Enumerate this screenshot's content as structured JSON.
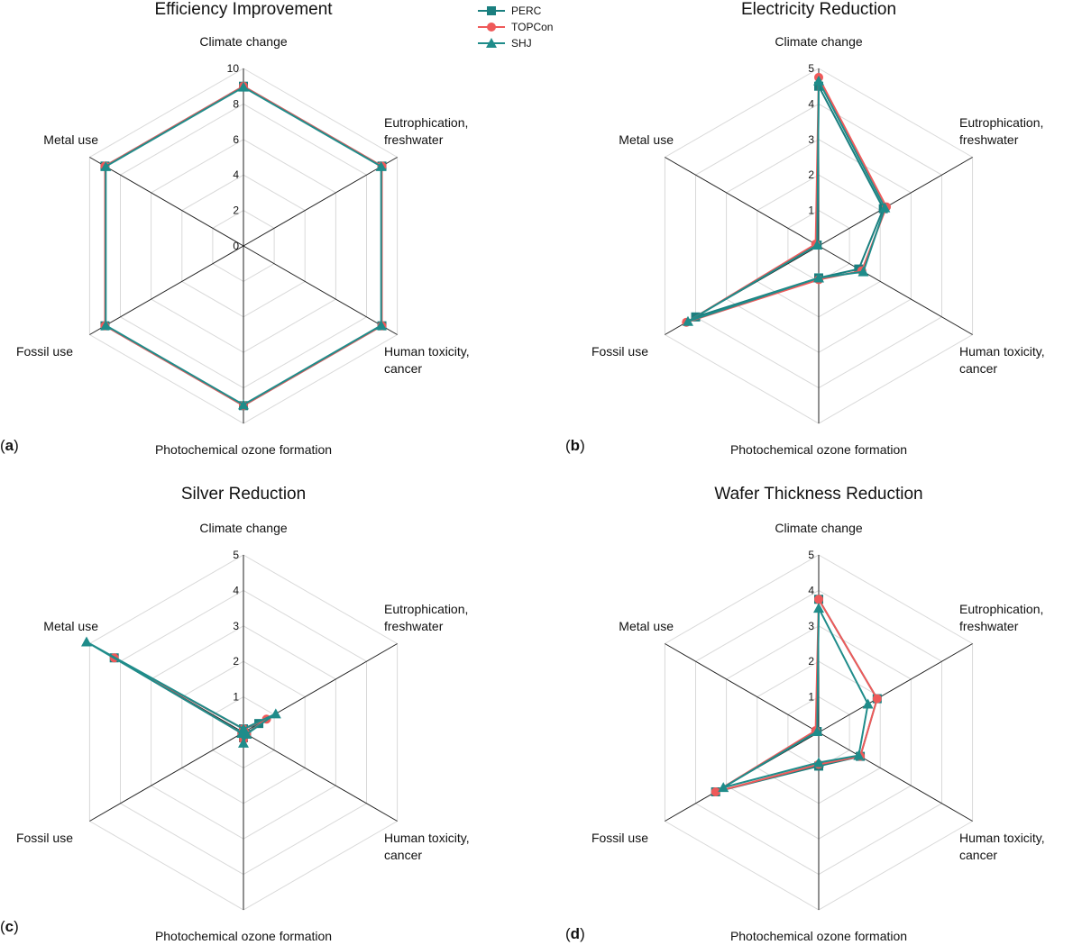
{
  "legend": [
    {
      "name": "PERC",
      "color": "#1a7f7f",
      "marker": "square"
    },
    {
      "name": "TOPCon",
      "color": "#ef5a5a",
      "marker": "circle"
    },
    {
      "name": "SHJ",
      "color": "#1f8c8a",
      "marker": "triangle"
    }
  ],
  "chart_data": [
    {
      "type": "radar",
      "panel_letter": "a",
      "title": "Efficiency Improvement",
      "axes": [
        {
          "label": [
            "Climate change"
          ]
        },
        {
          "label": [
            "Eutrophication,",
            "freshwater"
          ]
        },
        {
          "label": [
            "Human toxicity,",
            "cancer"
          ]
        },
        {
          "label": [
            "Photochemical ozone formation"
          ]
        },
        {
          "label": [
            "Fossil use"
          ]
        },
        {
          "label": [
            "Metal use"
          ]
        }
      ],
      "rmax": 10,
      "ticks": [
        0,
        2,
        4,
        6,
        8,
        10
      ],
      "series": [
        {
          "name": "PERC",
          "values": [
            9.0,
            9.0,
            9.0,
            9.0,
            9.0,
            9.0
          ]
        },
        {
          "name": "TOPCon",
          "values": [
            9.0,
            9.0,
            9.0,
            9.0,
            9.0,
            9.0
          ]
        },
        {
          "name": "SHJ",
          "values": [
            8.95,
            8.95,
            8.95,
            8.95,
            8.95,
            8.95
          ]
        }
      ]
    },
    {
      "type": "radar",
      "panel_letter": "b",
      "title": "Electricity Reduction",
      "axes": [
        {
          "label": [
            "Climate change"
          ]
        },
        {
          "label": [
            "Eutrophication,",
            "freshwater"
          ]
        },
        {
          "label": [
            "Human toxicity,",
            "cancer"
          ]
        },
        {
          "label": [
            "Photochemical ozone formation"
          ]
        },
        {
          "label": [
            "Fossil use"
          ]
        },
        {
          "label": [
            "Metal use"
          ]
        }
      ],
      "rmax": 5,
      "ticks": [
        1,
        2,
        3,
        4,
        5
      ],
      "series": [
        {
          "name": "PERC",
          "values": [
            4.5,
            2.1,
            1.3,
            0.9,
            4.0,
            0.05
          ]
        },
        {
          "name": "TOPCon",
          "values": [
            4.75,
            2.2,
            1.4,
            0.95,
            4.3,
            0.1
          ]
        },
        {
          "name": "SHJ",
          "values": [
            4.65,
            2.15,
            1.45,
            0.9,
            4.25,
            0.05
          ]
        }
      ]
    },
    {
      "type": "radar",
      "panel_letter": "c",
      "title": "Silver Reduction",
      "axes": [
        {
          "label": [
            "Climate change"
          ]
        },
        {
          "label": [
            "Eutrophication,",
            "freshwater"
          ]
        },
        {
          "label": [
            "Human toxicity,",
            "cancer"
          ]
        },
        {
          "label": [
            "Photochemical ozone formation"
          ]
        },
        {
          "label": [
            "Fossil use"
          ]
        },
        {
          "label": [
            "Metal use"
          ]
        }
      ],
      "rmax": 5,
      "ticks": [
        1,
        2,
        3,
        4,
        5
      ],
      "series": [
        {
          "name": "PERC",
          "values": [
            0.1,
            0.5,
            0.1,
            0.15,
            0.05,
            4.2
          ]
        },
        {
          "name": "TOPCon",
          "values": [
            0.1,
            0.75,
            0.1,
            0.2,
            0.05,
            4.2
          ]
        },
        {
          "name": "SHJ",
          "values": [
            0.1,
            1.05,
            0.1,
            0.3,
            0.05,
            5.1
          ]
        }
      ]
    },
    {
      "type": "radar",
      "panel_letter": "d",
      "title": "Wafer Thickness Reduction",
      "axes": [
        {
          "label": [
            "Climate change"
          ]
        },
        {
          "label": [
            "Eutrophication,",
            "freshwater"
          ]
        },
        {
          "label": [
            "Human toxicity,",
            "cancer"
          ]
        },
        {
          "label": [
            "Photochemical ozone formation"
          ]
        },
        {
          "label": [
            "Fossil use"
          ]
        },
        {
          "label": [
            "Metal use"
          ]
        }
      ],
      "rmax": 5,
      "ticks": [
        1,
        2,
        3,
        4,
        5
      ],
      "series": [
        {
          "name": "PERC",
          "values": [
            3.75,
            1.9,
            1.35,
            0.95,
            3.35,
            0.05
          ]
        },
        {
          "name": "TOPCon",
          "values": [
            3.75,
            1.9,
            1.35,
            0.9,
            3.35,
            0.1
          ]
        },
        {
          "name": "SHJ",
          "values": [
            3.5,
            1.6,
            1.3,
            0.85,
            3.1,
            0.05
          ]
        }
      ]
    }
  ]
}
